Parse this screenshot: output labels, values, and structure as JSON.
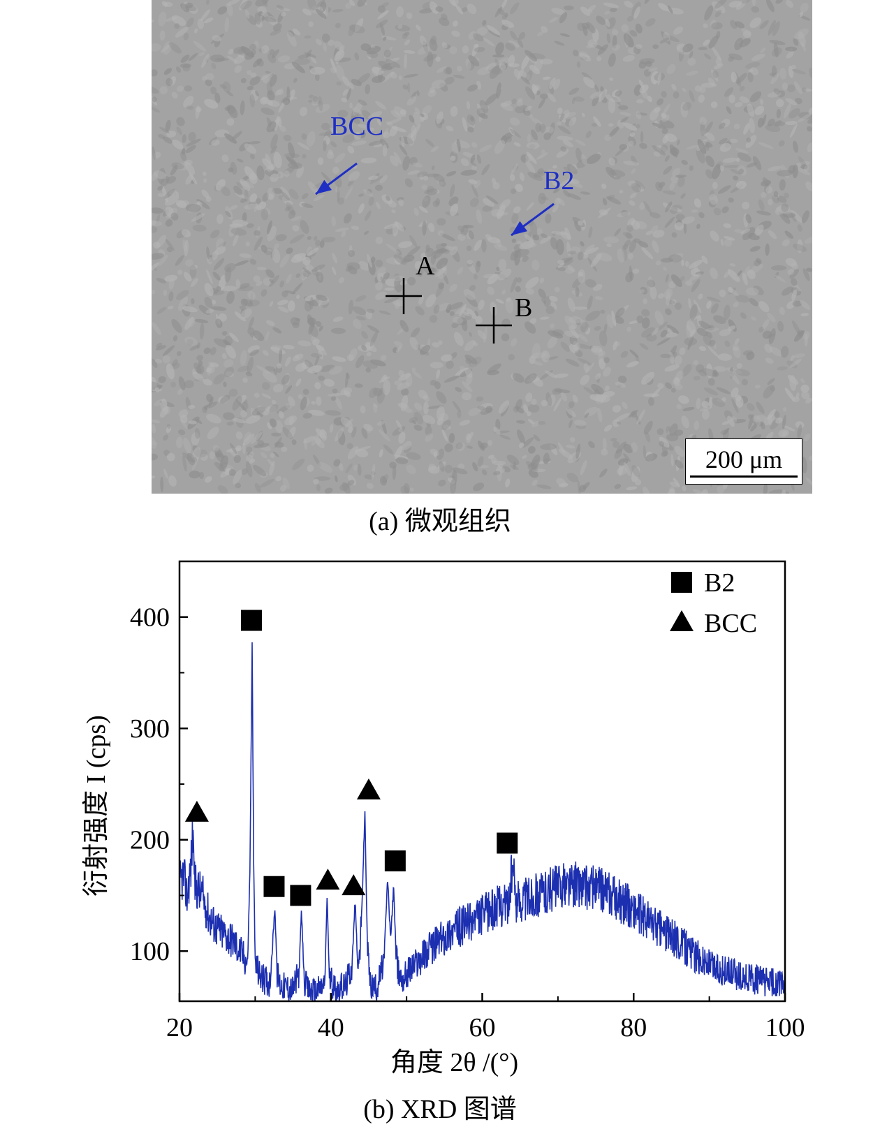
{
  "micrograph": {
    "labels": {
      "bcc": "BCC",
      "b2": "B2",
      "point_a": "A",
      "point_b": "B"
    },
    "scale_bar": "200 μm",
    "caption": "(a) 微观组织",
    "colors": {
      "arrow": "#1f2fc4",
      "background": "#a3a3a3"
    }
  },
  "chart_caption": "(b) XRD 图谱",
  "chart_data": {
    "type": "line",
    "title": "",
    "xlabel": "角度 2θ /(°)",
    "ylabel": "衍射强度 I (cps)",
    "xlim": [
      20,
      100
    ],
    "ylim": [
      55,
      450
    ],
    "x_ticks": [
      "20",
      "40",
      "60",
      "80",
      "100"
    ],
    "y_ticks": [
      "100",
      "200",
      "300",
      "400"
    ],
    "grid": false,
    "legend_position": "top-right",
    "legend": [
      {
        "label": "B2",
        "marker": "square"
      },
      {
        "label": "BCC",
        "marker": "triangle"
      }
    ],
    "line_color": "#1c2fb0",
    "series": [
      {
        "x": [
          20,
          20.5,
          21,
          21.5,
          21.8,
          22,
          23,
          24,
          25,
          26,
          27,
          28,
          29,
          29.3,
          29.6,
          29.8,
          30,
          30.5,
          31,
          32,
          32.6,
          32.9,
          33.3,
          34,
          35,
          35.8,
          36.1,
          36.5,
          37,
          38,
          39.2,
          39.5,
          39.8,
          40.5,
          41,
          42,
          42.8,
          43.2,
          43.6,
          44,
          44.5,
          44.8,
          45.2,
          46,
          47,
          47.5,
          47.9,
          48.3,
          48.6,
          48.9,
          49.5,
          50,
          52,
          54,
          56,
          58,
          60,
          62,
          63.5,
          64,
          64.5,
          66,
          68,
          70,
          72,
          74,
          76,
          78,
          80,
          82,
          84,
          86,
          88,
          90,
          92,
          94,
          96,
          98,
          100
        ],
        "y": [
          160,
          168,
          150,
          175,
          210,
          160,
          150,
          130,
          120,
          115,
          110,
          100,
          90,
          170,
          375,
          180,
          90,
          80,
          75,
          72,
          140,
          80,
          70,
          68,
          66,
          80,
          135,
          72,
          65,
          64,
          70,
          150,
          75,
          68,
          66,
          70,
          88,
          145,
          80,
          120,
          225,
          110,
          70,
          66,
          90,
          165,
          110,
          160,
          95,
          80,
          75,
          80,
          95,
          108,
          118,
          125,
          132,
          140,
          144,
          175,
          145,
          148,
          152,
          158,
          160,
          158,
          154,
          146,
          138,
          128,
          118,
          108,
          97,
          88,
          82,
          77,
          74,
          72,
          70
        ]
      }
    ],
    "markers": [
      {
        "type": "square",
        "x": 29.5,
        "y": 397
      },
      {
        "type": "square",
        "x": 32.5,
        "y": 158
      },
      {
        "type": "square",
        "x": 36.0,
        "y": 150
      },
      {
        "type": "square",
        "x": 48.5,
        "y": 181
      },
      {
        "type": "square",
        "x": 63.3,
        "y": 197
      },
      {
        "type": "triangle",
        "x": 22.3,
        "y": 225
      },
      {
        "type": "triangle",
        "x": 39.6,
        "y": 164
      },
      {
        "type": "triangle",
        "x": 43.0,
        "y": 159
      },
      {
        "type": "triangle",
        "x": 45.0,
        "y": 245
      }
    ]
  }
}
